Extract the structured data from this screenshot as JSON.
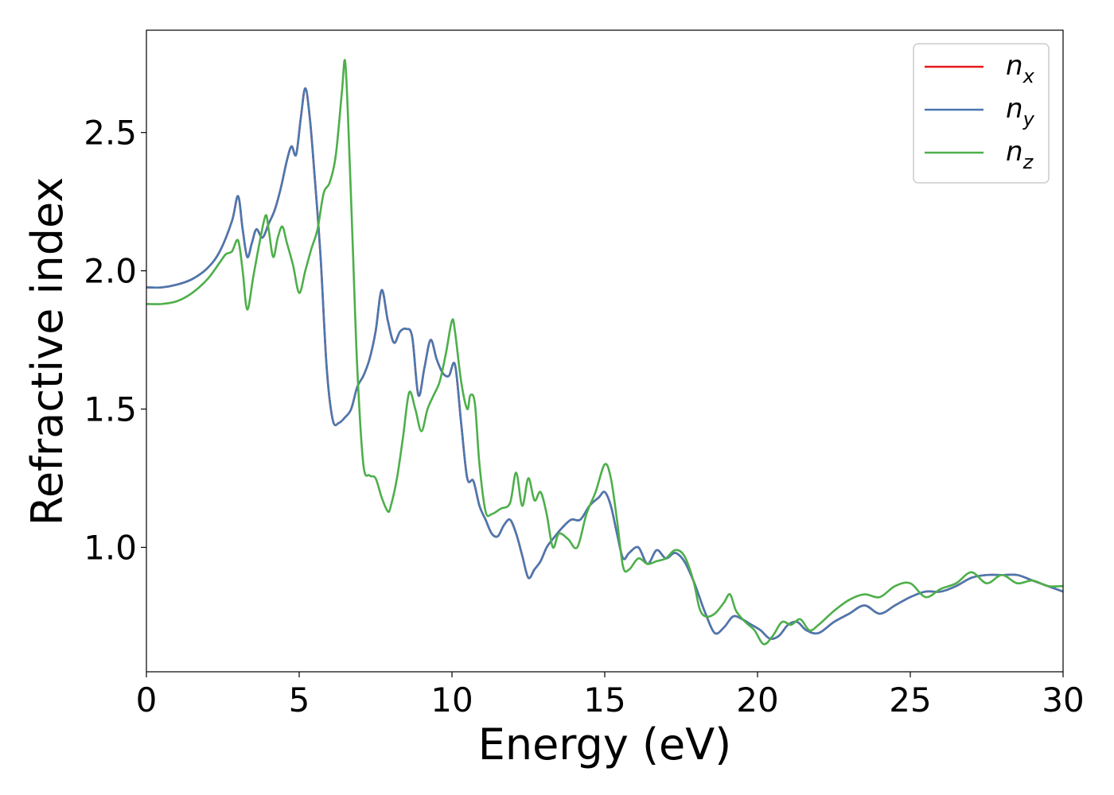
{
  "chart_data": {
    "type": "line",
    "title": "",
    "xlabel": "Energy (eV)",
    "ylabel": "Refractive index",
    "xlim": [
      0,
      30
    ],
    "ylim": [
      0.55,
      2.87
    ],
    "xticks": [
      0,
      5,
      10,
      15,
      20,
      25,
      30
    ],
    "yticks": [
      1.0,
      1.5,
      2.0,
      2.5
    ],
    "xtick_labels": [
      "0",
      "5",
      "10",
      "15",
      "20",
      "25",
      "30"
    ],
    "ytick_labels": [
      "1.0",
      "1.5",
      "2.0",
      "2.5"
    ],
    "grid": false,
    "legend_position": "top-right",
    "series": [
      {
        "name": "n_x",
        "label_main": "n",
        "label_sub": "x",
        "color": "#e41a1c",
        "x": [
          0,
          0.5,
          1,
          1.5,
          2,
          2.4,
          2.8,
          3.0,
          3.15,
          3.3,
          3.45,
          3.6,
          3.8,
          4.0,
          4.2,
          4.4,
          4.6,
          4.75,
          4.9,
          5.05,
          5.2,
          5.35,
          5.5,
          5.7,
          5.9,
          6.1,
          6.3,
          6.5,
          6.7,
          6.9,
          7.1,
          7.3,
          7.5,
          7.7,
          7.9,
          8.1,
          8.3,
          8.5,
          8.7,
          8.9,
          9.1,
          9.3,
          9.5,
          9.7,
          9.9,
          10.1,
          10.3,
          10.5,
          10.7,
          10.9,
          11.1,
          11.3,
          11.5,
          11.7,
          11.9,
          12.1,
          12.3,
          12.5,
          12.7,
          12.9,
          13.1,
          13.3,
          13.6,
          13.9,
          14.2,
          14.5,
          14.8,
          15.0,
          15.2,
          15.4,
          15.6,
          15.8,
          16.1,
          16.4,
          16.7,
          17.0,
          17.3,
          17.6,
          17.9,
          18.1,
          18.3,
          18.6,
          18.9,
          19.2,
          19.5,
          19.8,
          20.1,
          20.4,
          20.7,
          21.0,
          21.3,
          21.6,
          22.0,
          22.5,
          23.0,
          23.5,
          24.0,
          24.5,
          25.0,
          25.5,
          26.0,
          26.5,
          27.0,
          27.5,
          28.0,
          28.5,
          29.0,
          29.5,
          30.0
        ],
        "y": [
          1.94,
          1.94,
          1.95,
          1.97,
          2.01,
          2.07,
          2.18,
          2.27,
          2.15,
          2.05,
          2.1,
          2.15,
          2.12,
          2.17,
          2.22,
          2.3,
          2.4,
          2.45,
          2.42,
          2.55,
          2.66,
          2.55,
          2.35,
          2.05,
          1.65,
          1.46,
          1.45,
          1.47,
          1.5,
          1.58,
          1.62,
          1.68,
          1.78,
          1.93,
          1.82,
          1.74,
          1.78,
          1.79,
          1.76,
          1.55,
          1.65,
          1.75,
          1.68,
          1.63,
          1.62,
          1.66,
          1.45,
          1.25,
          1.24,
          1.15,
          1.1,
          1.05,
          1.04,
          1.08,
          1.1,
          1.05,
          0.97,
          0.89,
          0.92,
          0.95,
          1.0,
          1.03,
          1.07,
          1.1,
          1.1,
          1.15,
          1.18,
          1.2,
          1.15,
          1.05,
          0.96,
          0.98,
          1.0,
          0.94,
          0.99,
          0.96,
          0.98,
          0.95,
          0.88,
          0.82,
          0.76,
          0.69,
          0.71,
          0.75,
          0.74,
          0.72,
          0.7,
          0.67,
          0.68,
          0.72,
          0.73,
          0.7,
          0.69,
          0.73,
          0.76,
          0.79,
          0.76,
          0.79,
          0.82,
          0.84,
          0.84,
          0.86,
          0.89,
          0.9,
          0.9,
          0.9,
          0.88,
          0.86,
          0.84
        ]
      },
      {
        "name": "n_y",
        "label_main": "n",
        "label_sub": "y",
        "color": "#4a78b0",
        "x": [
          0,
          0.5,
          1,
          1.5,
          2,
          2.4,
          2.8,
          3.0,
          3.15,
          3.3,
          3.45,
          3.6,
          3.8,
          4.0,
          4.2,
          4.4,
          4.6,
          4.75,
          4.9,
          5.05,
          5.2,
          5.35,
          5.5,
          5.7,
          5.9,
          6.1,
          6.3,
          6.5,
          6.7,
          6.9,
          7.1,
          7.3,
          7.5,
          7.7,
          7.9,
          8.1,
          8.3,
          8.5,
          8.7,
          8.9,
          9.1,
          9.3,
          9.5,
          9.7,
          9.9,
          10.1,
          10.3,
          10.5,
          10.7,
          10.9,
          11.1,
          11.3,
          11.5,
          11.7,
          11.9,
          12.1,
          12.3,
          12.5,
          12.7,
          12.9,
          13.1,
          13.3,
          13.6,
          13.9,
          14.2,
          14.5,
          14.8,
          15.0,
          15.2,
          15.4,
          15.6,
          15.8,
          16.1,
          16.4,
          16.7,
          17.0,
          17.3,
          17.6,
          17.9,
          18.1,
          18.3,
          18.6,
          18.9,
          19.2,
          19.5,
          19.8,
          20.1,
          20.4,
          20.7,
          21.0,
          21.3,
          21.6,
          22.0,
          22.5,
          23.0,
          23.5,
          24.0,
          24.5,
          25.0,
          25.5,
          26.0,
          26.5,
          27.0,
          27.5,
          28.0,
          28.5,
          29.0,
          29.5,
          30.0
        ],
        "y": [
          1.94,
          1.94,
          1.95,
          1.97,
          2.01,
          2.07,
          2.18,
          2.27,
          2.15,
          2.05,
          2.1,
          2.15,
          2.12,
          2.17,
          2.22,
          2.3,
          2.4,
          2.45,
          2.42,
          2.55,
          2.66,
          2.55,
          2.35,
          2.05,
          1.65,
          1.46,
          1.45,
          1.47,
          1.5,
          1.58,
          1.62,
          1.68,
          1.78,
          1.93,
          1.82,
          1.74,
          1.78,
          1.79,
          1.76,
          1.55,
          1.65,
          1.75,
          1.68,
          1.63,
          1.62,
          1.66,
          1.45,
          1.25,
          1.24,
          1.15,
          1.1,
          1.05,
          1.04,
          1.08,
          1.1,
          1.05,
          0.97,
          0.89,
          0.92,
          0.95,
          1.0,
          1.03,
          1.07,
          1.1,
          1.1,
          1.15,
          1.18,
          1.2,
          1.15,
          1.05,
          0.96,
          0.98,
          1.0,
          0.94,
          0.99,
          0.96,
          0.98,
          0.95,
          0.88,
          0.82,
          0.76,
          0.69,
          0.71,
          0.75,
          0.74,
          0.72,
          0.7,
          0.67,
          0.68,
          0.72,
          0.73,
          0.7,
          0.69,
          0.73,
          0.76,
          0.79,
          0.76,
          0.79,
          0.82,
          0.84,
          0.84,
          0.86,
          0.89,
          0.9,
          0.9,
          0.9,
          0.88,
          0.86,
          0.84
        ]
      },
      {
        "name": "n_z",
        "label_main": "n",
        "label_sub": "z",
        "color": "#4daf4a",
        "x": [
          0,
          0.5,
          1,
          1.5,
          2,
          2.4,
          2.6,
          2.8,
          3.0,
          3.15,
          3.3,
          3.5,
          3.7,
          3.9,
          4.0,
          4.15,
          4.3,
          4.45,
          4.6,
          4.8,
          5.0,
          5.2,
          5.4,
          5.6,
          5.8,
          6.0,
          6.2,
          6.4,
          6.5,
          6.6,
          6.75,
          6.9,
          7.1,
          7.3,
          7.5,
          7.7,
          7.9,
          8.0,
          8.2,
          8.4,
          8.6,
          8.8,
          9.0,
          9.2,
          9.4,
          9.6,
          9.8,
          10.0,
          10.1,
          10.3,
          10.5,
          10.6,
          10.75,
          10.9,
          11.1,
          11.3,
          11.6,
          11.9,
          12.1,
          12.3,
          12.5,
          12.7,
          12.9,
          13.1,
          13.3,
          13.5,
          13.8,
          14.1,
          14.4,
          14.7,
          15.0,
          15.2,
          15.4,
          15.6,
          15.8,
          16.1,
          16.4,
          16.7,
          17.0,
          17.3,
          17.6,
          17.9,
          18.1,
          18.3,
          18.6,
          18.9,
          19.1,
          19.3,
          19.6,
          19.9,
          20.2,
          20.5,
          20.8,
          21.1,
          21.4,
          21.7,
          22.0,
          22.5,
          23.0,
          23.5,
          24.0,
          24.5,
          25.0,
          25.5,
          26.0,
          26.5,
          27.0,
          27.5,
          28.0,
          28.5,
          29.0,
          29.5,
          30.0
        ],
        "y": [
          1.88,
          1.88,
          1.89,
          1.92,
          1.97,
          2.03,
          2.06,
          2.07,
          2.11,
          2.0,
          1.86,
          1.98,
          2.1,
          2.2,
          2.15,
          2.05,
          2.12,
          2.16,
          2.1,
          2.02,
          1.92,
          2.0,
          2.08,
          2.15,
          2.28,
          2.32,
          2.42,
          2.65,
          2.76,
          2.55,
          2.1,
          1.65,
          1.3,
          1.26,
          1.25,
          1.18,
          1.13,
          1.15,
          1.25,
          1.4,
          1.56,
          1.5,
          1.42,
          1.5,
          1.55,
          1.6,
          1.7,
          1.82,
          1.78,
          1.6,
          1.5,
          1.55,
          1.52,
          1.3,
          1.13,
          1.12,
          1.14,
          1.16,
          1.27,
          1.15,
          1.25,
          1.17,
          1.2,
          1.12,
          1.0,
          1.05,
          1.03,
          1.0,
          1.12,
          1.2,
          1.3,
          1.25,
          1.1,
          0.93,
          0.92,
          0.96,
          0.94,
          0.95,
          0.96,
          0.99,
          0.97,
          0.88,
          0.78,
          0.75,
          0.76,
          0.8,
          0.83,
          0.77,
          0.73,
          0.7,
          0.65,
          0.68,
          0.73,
          0.72,
          0.74,
          0.7,
          0.72,
          0.77,
          0.81,
          0.83,
          0.82,
          0.86,
          0.87,
          0.82,
          0.85,
          0.87,
          0.91,
          0.87,
          0.9,
          0.87,
          0.88,
          0.86,
          0.86
        ]
      }
    ]
  }
}
